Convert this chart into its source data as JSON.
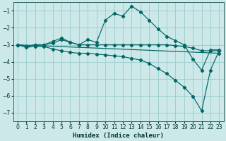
{
  "xlabel": "Humidex (Indice chaleur)",
  "background_color": "#cce8e8",
  "grid_color": "#99cccc",
  "line_color": "#006666",
  "xlim": [
    -0.5,
    23.5
  ],
  "ylim": [
    -7.5,
    -0.5
  ],
  "yticks": [
    -7,
    -6,
    -5,
    -4,
    -3,
    -2,
    -1
  ],
  "xticks": [
    0,
    1,
    2,
    3,
    4,
    5,
    6,
    7,
    8,
    9,
    10,
    11,
    12,
    13,
    14,
    15,
    16,
    17,
    18,
    19,
    20,
    21,
    22,
    23
  ],
  "line1_x": [
    0,
    1,
    2,
    3,
    4,
    5,
    6,
    7,
    8,
    9,
    10,
    11,
    12,
    13,
    14,
    15,
    16,
    17,
    18,
    19,
    20,
    21,
    22,
    23
  ],
  "line1_y": [
    -3.0,
    -3.1,
    -3.0,
    -3.0,
    -2.8,
    -2.6,
    -2.85,
    -3.0,
    -2.7,
    -2.85,
    -1.55,
    -1.15,
    -1.3,
    -0.72,
    -1.05,
    -1.55,
    -2.05,
    -2.5,
    -2.75,
    -3.0,
    -3.85,
    -4.5,
    -3.3,
    -3.3
  ],
  "line2_x": [
    0,
    1,
    2,
    3,
    4,
    5,
    6,
    7,
    8,
    9,
    10,
    11,
    12,
    13,
    14,
    15,
    16,
    17,
    18,
    19,
    20,
    21,
    22,
    23
  ],
  "line2_y": [
    -3.0,
    -3.1,
    -3.0,
    -3.0,
    -2.9,
    -2.7,
    -2.85,
    -3.0,
    -3.0,
    -3.0,
    -3.0,
    -3.0,
    -3.0,
    -3.0,
    -3.0,
    -3.0,
    -3.0,
    -3.0,
    -3.05,
    -3.1,
    -3.2,
    -3.35,
    -3.35,
    -3.35
  ],
  "line3_x": [
    0,
    23
  ],
  "line3_y": [
    -3.0,
    -3.5
  ],
  "line4_x": [
    0,
    1,
    2,
    3,
    4,
    5,
    6,
    7,
    8,
    9,
    10,
    11,
    12,
    13,
    14,
    15,
    16,
    17,
    18,
    19,
    20,
    21,
    22,
    23
  ],
  "line4_y": [
    -3.0,
    -3.15,
    -3.1,
    -3.1,
    -3.25,
    -3.35,
    -3.45,
    -3.5,
    -3.5,
    -3.55,
    -3.6,
    -3.65,
    -3.7,
    -3.8,
    -3.9,
    -4.1,
    -4.4,
    -4.7,
    -5.1,
    -5.5,
    -6.05,
    -6.9,
    -4.5,
    -3.35
  ]
}
